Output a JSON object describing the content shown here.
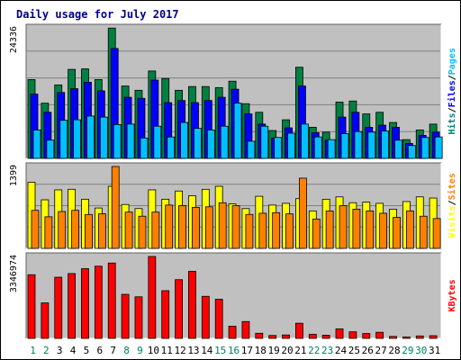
{
  "chart_data": {
    "type": "bar",
    "title": "Daily usage for July 2017",
    "days": [
      "1",
      "2",
      "3",
      "4",
      "5",
      "6",
      "7",
      "8",
      "9",
      "10",
      "11",
      "12",
      "13",
      "14",
      "15",
      "16",
      "17",
      "18",
      "19",
      "20",
      "21",
      "22",
      "23",
      "24",
      "25",
      "26",
      "27",
      "28",
      "29",
      "30",
      "31"
    ],
    "weekend_days": [
      "1",
      "2",
      "8",
      "9",
      "15",
      "16",
      "22",
      "23",
      "29",
      "30"
    ],
    "colors": {
      "hits": "#008040",
      "files": "#0000ff",
      "pages": "#00c0ff",
      "visits": "#ffff00",
      "sites": "#ff8000",
      "kbytes": "#ff0000",
      "background": "#c0c0c0",
      "frame": "#808080",
      "weekday_label": "#000000",
      "weekend_label": "#00805c"
    },
    "panels": [
      {
        "id": "hits-files-pages",
        "max_label": "24336",
        "ymax": 24336,
        "legend": [
          {
            "text": "Hits",
            "color": "#008080"
          },
          {
            "text": "/",
            "color": "#000000"
          },
          {
            "text": "Files",
            "color": "#0000ff"
          },
          {
            "text": "/",
            "color": "#000000"
          },
          {
            "text": "Pages",
            "color": "#00c0ff"
          }
        ],
        "series": [
          {
            "name": "Hits",
            "color": "#008040",
            "values": [
              14700,
              10300,
              13700,
              16600,
              16700,
              14700,
              24300,
              13500,
              12700,
              16300,
              14900,
              12700,
              13400,
              13400,
              13200,
              14400,
              10200,
              8600,
              5200,
              7200,
              17000,
              5800,
              4900,
              10500,
              10700,
              8300,
              8600,
              6700,
              3500,
              5300,
              6400
            ]
          },
          {
            "name": "Files",
            "color": "#0000ff",
            "values": [
              12000,
              8600,
              12300,
              13000,
              14200,
              12600,
              20500,
              11400,
              11200,
              14600,
              10400,
              10800,
              10400,
              10800,
              11400,
              12900,
              8300,
              6400,
              3800,
              5700,
              13500,
              4800,
              3400,
              7700,
              8600,
              5800,
              6200,
              5800,
              2800,
              4300,
              4900
            ]
          },
          {
            "name": "Pages",
            "color": "#00c0ff",
            "values": [
              5300,
              3400,
              7100,
              7200,
              7900,
              7700,
              6300,
              6400,
              3800,
              6000,
              4000,
              6700,
              5600,
              5300,
              6000,
              10300,
              3200,
              6000,
              3900,
              4700,
              6400,
              4000,
              3500,
              4600,
              5000,
              4900,
              5100,
              3400,
              2400,
              3900,
              4000
            ]
          }
        ]
      },
      {
        "id": "visits-sites",
        "max_label": "1399",
        "ymax": 1399,
        "legend": [
          {
            "text": "Visits",
            "color": "#ffff00"
          },
          {
            "text": "/",
            "color": "#000000"
          },
          {
            "text": "Sites",
            "color": "#ff8000"
          }
        ],
        "series": [
          {
            "name": "Visits",
            "color": "#ffff00",
            "values": [
              1130,
              830,
              1000,
              1010,
              840,
              690,
              1060,
              750,
              680,
              1000,
              840,
              980,
              900,
              1010,
              1060,
              760,
              680,
              890,
              740,
              770,
              850,
              640,
              840,
              880,
              780,
              790,
              770,
              670,
              800,
              880,
              860
            ]
          },
          {
            "name": "Sites",
            "color": "#ff8000",
            "values": [
              650,
              540,
              630,
              650,
              580,
              590,
              1399,
              620,
              550,
              620,
              740,
              730,
              700,
              710,
              780,
              730,
              580,
              600,
              610,
              590,
              1200,
              500,
              640,
              730,
              670,
              640,
              600,
              530,
              640,
              550,
              510
            ]
          }
        ]
      },
      {
        "id": "kbytes",
        "max_label": "3346974",
        "ymax": 3346974,
        "legend": [
          {
            "text": "KBytes",
            "color": "#ff0000"
          }
        ],
        "series": [
          {
            "name": "KBytes",
            "color": "#ff0000",
            "values": [
              2600000,
              1450000,
              2500000,
              2650000,
              2850000,
              2950000,
              3080000,
              1800000,
              1700000,
              3346974,
              1950000,
              2400000,
              2740000,
              1720000,
              1600000,
              500000,
              690000,
              210000,
              120000,
              140000,
              620000,
              170000,
              130000,
              390000,
              270000,
              200000,
              250000,
              80000,
              60000,
              100000,
              110000
            ]
          }
        ]
      }
    ]
  }
}
